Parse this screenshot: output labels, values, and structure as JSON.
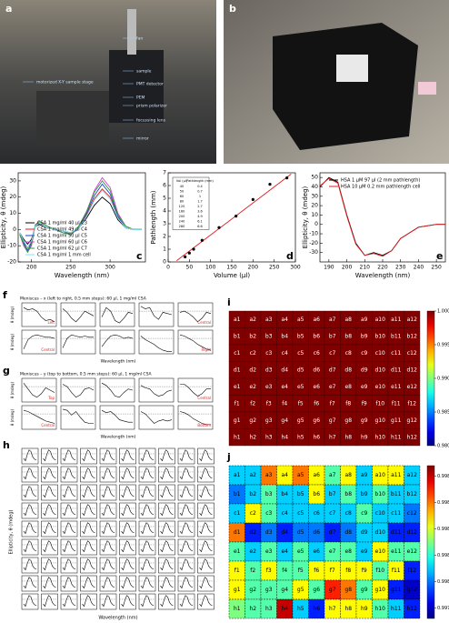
{
  "panel_labels": [
    "a",
    "b",
    "c",
    "d",
    "e",
    "f",
    "g",
    "h",
    "i",
    "j"
  ],
  "photo_a_labels": [
    "fan",
    "sample",
    "motorized X-Y sample stage",
    "PMT detector",
    "PEM",
    "prism polarizer",
    "focussing lens",
    "mirror"
  ],
  "chart_data": [
    {
      "type": "line",
      "xlabel": "Wavelength (nm)",
      "ylabel": "Ellipticity, θ (mdeg)",
      "legend": "lower left",
      "x": [
        185,
        190,
        195,
        200,
        205,
        210,
        220,
        230,
        240,
        250,
        260,
        270,
        280,
        290,
        300,
        310,
        320,
        330,
        340
      ],
      "xlim": [
        183,
        345
      ],
      "xticks": [
        200,
        250,
        300
      ],
      "ylim": [
        -20,
        35
      ],
      "yticks": [
        -20,
        -10,
        0,
        10,
        20,
        30
      ],
      "series": [
        {
          "name": "CSA 1 mg/ml 40 µl C3",
          "color": "#000000",
          "values": [
            -2,
            -6,
            -9,
            -6,
            2,
            3,
            1,
            0,
            -1,
            -2,
            1,
            7,
            15,
            20,
            16,
            6,
            1,
            0,
            0
          ]
        },
        {
          "name": "CSA 1 mg/ml 49 µl C4",
          "color": "#e41a1c",
          "values": [
            -3,
            -8,
            -11,
            -8,
            3,
            4,
            1,
            0,
            -1,
            -3,
            1,
            9,
            19,
            25,
            20,
            8,
            1,
            0,
            0
          ]
        },
        {
          "name": "CSA 1 mg/ml 50 µl C5",
          "color": "#1f3fd6",
          "values": [
            -3,
            -8,
            -13,
            -8,
            3,
            4,
            1,
            0,
            -1,
            -3,
            1,
            10,
            21,
            28,
            22,
            8,
            1,
            0,
            0
          ]
        },
        {
          "name": "CSA 1 mg/ml 60 µl C6",
          "color": "#d63bd6",
          "values": [
            -3,
            -10,
            -14,
            -10,
            3,
            5,
            2,
            0,
            -2,
            -3,
            2,
            11,
            24,
            32,
            26,
            10,
            2,
            0,
            0
          ]
        },
        {
          "name": "CSA 1 mg/ml 62 µl C7",
          "color": "#2ca02c",
          "values": [
            -3,
            -9,
            -14,
            -9,
            3,
            5,
            2,
            0,
            -2,
            -3,
            2,
            11,
            23,
            30,
            24,
            9,
            2,
            0,
            0
          ]
        },
        {
          "name": "CSA 1 mg/ml 1 mm cell",
          "color": "#7fe3f0",
          "values": [
            -2,
            -7,
            -11,
            -7,
            2,
            4,
            1,
            0,
            -1,
            -2,
            1,
            8,
            18,
            24,
            19,
            7,
            1,
            0,
            0
          ]
        }
      ]
    },
    {
      "type": "scatter",
      "xlabel": "Volume (µl)",
      "ylabel": "Pathlength (mm)",
      "x": [
        40,
        50,
        60,
        80,
        120,
        160,
        200,
        240,
        280
      ],
      "values": [
        0.4,
        0.7,
        1.0,
        1.7,
        2.7,
        3.6,
        4.9,
        6.1,
        6.6
      ],
      "color": "#000000",
      "fit": {
        "x": [
          20,
          290
        ],
        "values": [
          0.1,
          6.9
        ],
        "color": "#e41a1c"
      },
      "table_header": [
        "Vol (µl)",
        "Pathlength (mm)"
      ],
      "xlim": [
        0,
        300
      ],
      "xticks": [
        0,
        50,
        100,
        150,
        200,
        250,
        300
      ],
      "ylim": [
        0,
        7
      ],
      "yticks": [
        0,
        1,
        2,
        3,
        4,
        5,
        6,
        7
      ]
    },
    {
      "type": "line",
      "xlabel": "Wavelength (nm)",
      "ylabel": "Ellipticity, θ (mdeg)",
      "legend": "upper right",
      "x": [
        185,
        190,
        195,
        200,
        205,
        210,
        215,
        220,
        225,
        230,
        240,
        250,
        255
      ],
      "xlim": [
        185,
        255
      ],
      "xticks": [
        190,
        200,
        210,
        220,
        230,
        240,
        250
      ],
      "ylim": [
        -40,
        55
      ],
      "yticks": [
        -30,
        -20,
        -10,
        0,
        10,
        20,
        30,
        40,
        50
      ],
      "series": [
        {
          "name": "HSA 1 µM 97 µl (2 mm pathlength)",
          "color": "#000000",
          "values": [
            40,
            50,
            45,
            10,
            -20,
            -33,
            -30,
            -33,
            -28,
            -15,
            -3,
            0,
            0
          ]
        },
        {
          "name": "HSA 10 µM 0.2 mm pathlength cell",
          "color": "#e41a1c",
          "values": [
            41,
            49,
            44,
            9,
            -21,
            -33,
            -31,
            -34,
            -28,
            -15,
            -3,
            0,
            0
          ]
        }
      ]
    },
    {
      "type": "heatmap",
      "colormap": "jet",
      "clim": [
        0.98,
        1.0
      ],
      "cticks": [
        {
          "value": 0.98,
          "label": "0.980"
        },
        {
          "value": 0.985,
          "label": "0.985"
        },
        {
          "value": 0.99,
          "label": "0.990"
        },
        {
          "value": 0.995,
          "label": "0.995"
        },
        {
          "value": 1.0,
          "label": "1.000"
        }
      ],
      "labels": [
        [
          "a1",
          "a2",
          "a3",
          "a4",
          "a5",
          "a6",
          "a7",
          "a8",
          "a9",
          "a10",
          "a11",
          "a12"
        ],
        [
          "b1",
          "b2",
          "b3",
          "b4",
          "b5",
          "b6",
          "b7",
          "b8",
          "b9",
          "b10",
          "b11",
          "b12"
        ],
        [
          "c1",
          "c2",
          "c3",
          "c4",
          "c5",
          "c6",
          "c7",
          "c8",
          "c9",
          "c10",
          "c11",
          "c12"
        ],
        [
          "d1",
          "d2",
          "d3",
          "d4",
          "d5",
          "d6",
          "d7",
          "d8",
          "d9",
          "d10",
          "d11",
          "d12"
        ],
        [
          "e1",
          "e2",
          "e3",
          "e4",
          "e5",
          "e6",
          "e7",
          "e8",
          "e9",
          "e10",
          "e11",
          "e12"
        ],
        [
          "f1",
          "f2",
          "f3",
          "f4",
          "f5",
          "f6",
          "f7",
          "f8",
          "f9",
          "f10",
          "f11",
          "f12"
        ],
        [
          "g1",
          "g2",
          "g3",
          "g4",
          "g5",
          "g6",
          "g7",
          "g8",
          "g9",
          "g10",
          "g11",
          "g12"
        ],
        [
          "h1",
          "h2",
          "h3",
          "h4",
          "h5",
          "h6",
          "h7",
          "h8",
          "h9",
          "h10",
          "h11",
          "h12"
        ]
      ],
      "values": [
        [
          1,
          1,
          1,
          1,
          1,
          1,
          1,
          1,
          1,
          1,
          1,
          1
        ],
        [
          1,
          1,
          1,
          1,
          1,
          1,
          1,
          1,
          1,
          1,
          1,
          1
        ],
        [
          1,
          1,
          1,
          1,
          1,
          1,
          1,
          1,
          1,
          1,
          1,
          1
        ],
        [
          1,
          1,
          1,
          1,
          1,
          1,
          1,
          1,
          1,
          1,
          1,
          1
        ],
        [
          1,
          1,
          1,
          1,
          1,
          1,
          1,
          1,
          1,
          1,
          1,
          1
        ],
        [
          1,
          1,
          1,
          1,
          1,
          1,
          1,
          1,
          1,
          1,
          1,
          1
        ],
        [
          1,
          1,
          1,
          1,
          1,
          1,
          1,
          1,
          1,
          1,
          1,
          1
        ],
        [
          1,
          1,
          1,
          1,
          1,
          1,
          1,
          1,
          1,
          1,
          1,
          1
        ]
      ]
    },
    {
      "type": "heatmap",
      "colormap": "jet",
      "clim": [
        0.99772,
        0.99888
      ],
      "cticks": [
        0.9978,
        0.998,
        0.9982,
        0.9984,
        0.9986,
        0.9988
      ],
      "labels": [
        [
          "a1",
          "a2",
          "a3",
          "a4",
          "a5",
          "a6",
          "a7",
          "a8",
          "a9",
          "a10",
          "a11",
          "a12"
        ],
        [
          "b1",
          "b2",
          "b3",
          "b4",
          "b5",
          "b6",
          "b7",
          "b8",
          "b9",
          "b10",
          "b11",
          "b12"
        ],
        [
          "c1",
          "c2",
          "c3",
          "c4",
          "c5",
          "c6",
          "c7",
          "c8",
          "c9",
          "c10",
          "c11",
          "c12"
        ],
        [
          "d1",
          "d2",
          "d3",
          "d4",
          "d5",
          "d6",
          "d7",
          "d8",
          "d9",
          "d10",
          "d11",
          "d12"
        ],
        [
          "e1",
          "e2",
          "e3",
          "e4",
          "e5",
          "e6",
          "e7",
          "e8",
          "e9",
          "e10",
          "e11",
          "e12"
        ],
        [
          "f1",
          "f2",
          "f3",
          "f4",
          "f5",
          "f6",
          "f7",
          "f8",
          "f9",
          "f10",
          "f11",
          "f12"
        ],
        [
          "g1",
          "g2",
          "g3",
          "g4",
          "g5",
          "g6",
          "g7",
          "g8",
          "g9",
          "g10",
          "g11",
          "g12"
        ],
        [
          "h1",
          "h2",
          "h3",
          "h4",
          "h5",
          "h6",
          "h7",
          "h8",
          "h9",
          "h10",
          "h11",
          "h12"
        ]
      ],
      "values": [
        [
          0.9981,
          0.9981,
          0.9986,
          0.99845,
          0.9986,
          0.99845,
          0.99825,
          0.99845,
          0.9981,
          0.99845,
          0.99845,
          0.9981
        ],
        [
          0.998,
          0.9981,
          0.99825,
          0.9981,
          0.9981,
          0.99845,
          0.9981,
          0.99825,
          0.9981,
          0.99825,
          0.9981,
          0.9981
        ],
        [
          0.9981,
          0.99845,
          0.99825,
          0.9981,
          0.9981,
          0.9981,
          0.9981,
          0.9981,
          0.99825,
          0.9981,
          0.9981,
          0.998
        ],
        [
          0.9986,
          0.9979,
          0.998,
          0.9979,
          0.998,
          0.998,
          0.9979,
          0.998,
          0.9981,
          0.9981,
          0.9979,
          0.9979
        ],
        [
          0.99825,
          0.9981,
          0.99825,
          0.9981,
          0.99825,
          0.9981,
          0.99825,
          0.99825,
          0.9981,
          0.99845,
          0.99825,
          0.99825
        ],
        [
          0.99845,
          0.99825,
          0.99845,
          0.99825,
          0.99825,
          0.99845,
          0.99845,
          0.99845,
          0.99845,
          0.99825,
          0.99845,
          0.9979
        ],
        [
          0.99845,
          0.99825,
          0.99825,
          0.99825,
          0.99845,
          0.99825,
          0.9987,
          0.9986,
          0.99825,
          0.99845,
          0.9979,
          0.9978
        ],
        [
          0.9983,
          0.99825,
          0.99825,
          0.9988,
          0.9981,
          0.9979,
          0.99845,
          0.99845,
          0.99845,
          0.99825,
          0.9981,
          0.9979
        ]
      ]
    }
  ],
  "f": {
    "title": "Meniscus – x (left to right, 0.5 mm steps): 60 µl, 1 mg/ml CSA",
    "ylabel": "θ (mdeg)",
    "xlabel": "Wavelength (nm)",
    "ylim": [
      -1,
      1
    ],
    "plots": [
      {
        "label": "Left",
        "values": [
          0.6,
          0.4,
          0.5,
          0.3,
          -0.2,
          -0.5,
          -0.4,
          -0.6
        ]
      },
      {
        "values": [
          0.5,
          0.2,
          -0.3,
          -0.6,
          -0.2,
          0.3,
          0.1,
          -0.1
        ]
      },
      {
        "values": [
          -0.2,
          0.6,
          0.3,
          -0.5,
          -0.7,
          -0.3,
          0.2,
          0.1
        ]
      },
      {
        "values": [
          0.7,
          0.5,
          0.6,
          -0.1,
          -0.4,
          0.2,
          0.1,
          0.0
        ]
      },
      {
        "label": "Central",
        "values": [
          0.2,
          0.3,
          0.1,
          -0.2,
          -0.6,
          -0.3,
          0.2,
          0.1
        ]
      },
      {
        "label": "Central",
        "values": [
          -0.6,
          0.2,
          0.5,
          0.6,
          0.5,
          0.4,
          0.4,
          0.3
        ]
      },
      {
        "values": [
          -0.5,
          0.3,
          0.6,
          0.5,
          0.4,
          0.5,
          0.4,
          0.4
        ]
      },
      {
        "values": [
          -0.4,
          0.1,
          0.5,
          0.6,
          0.5,
          0.3,
          0.4,
          0.3
        ]
      },
      {
        "values": [
          0.5,
          0.2,
          0.0,
          -0.2,
          -0.5,
          -0.7,
          -0.8,
          -0.8
        ]
      },
      {
        "label": "Right",
        "values": [
          0.6,
          0.5,
          0.3,
          0.1,
          -0.2,
          -0.4,
          -0.6,
          -0.7
        ]
      }
    ]
  },
  "g": {
    "title": "Meniscus – y (top to bottom, 0.5 mm steps): 60 µl, 1 mg/ml CSA",
    "ylabel": "θ (mdeg)",
    "xlabel": "Wavelength (nm)",
    "ylim": [
      -1,
      1
    ],
    "plots": [
      {
        "label": "Top",
        "values": [
          0.6,
          0.1,
          -0.4,
          -0.6,
          -0.3,
          0.2,
          0.0,
          -0.2
        ]
      },
      {
        "values": [
          0.5,
          0.3,
          -0.2,
          -0.6,
          -0.4,
          0.1,
          0.2,
          0.0
        ]
      },
      {
        "values": [
          0.6,
          0.4,
          0.0,
          -0.5,
          -0.6,
          -0.2,
          0.1,
          0.0
        ]
      },
      {
        "values": [
          0.4,
          0.2,
          0.1,
          -0.3,
          -0.5,
          -0.4,
          -0.1,
          0.0
        ]
      },
      {
        "label": "Central",
        "values": [
          0.5,
          0.5,
          0.2,
          -0.2,
          -0.5,
          -0.3,
          0.1,
          0.1
        ]
      },
      {
        "label": "Central",
        "values": [
          0.6,
          0.5,
          0.3,
          0.1,
          -0.1,
          -0.3,
          -0.4,
          -0.5
        ]
      },
      {
        "values": [
          0.7,
          0.6,
          0.2,
          0.5,
          0.0,
          -0.4,
          -0.5,
          -0.5
        ]
      },
      {
        "values": [
          0.6,
          0.4,
          0.5,
          0.2,
          -0.2,
          -0.3,
          -0.4,
          -0.4
        ]
      },
      {
        "values": [
          0.5,
          0.3,
          -0.1,
          -0.5,
          -0.3,
          -0.2,
          -0.3,
          -0.2
        ]
      },
      {
        "label": "Bottom",
        "values": [
          0.5,
          0.4,
          0.2,
          -0.1,
          -0.3,
          -0.5,
          -0.6,
          -0.6
        ]
      }
    ]
  },
  "h": {
    "ylabel": "Ellipticity, θ (mdeg)",
    "xlabel": "Wavelength (nm)",
    "ylim": [
      -1,
      1
    ],
    "profile": [
      -0.3,
      -0.6,
      0.2,
      0.8,
      0.6,
      -0.1,
      -0.4,
      -0.5
    ]
  }
}
